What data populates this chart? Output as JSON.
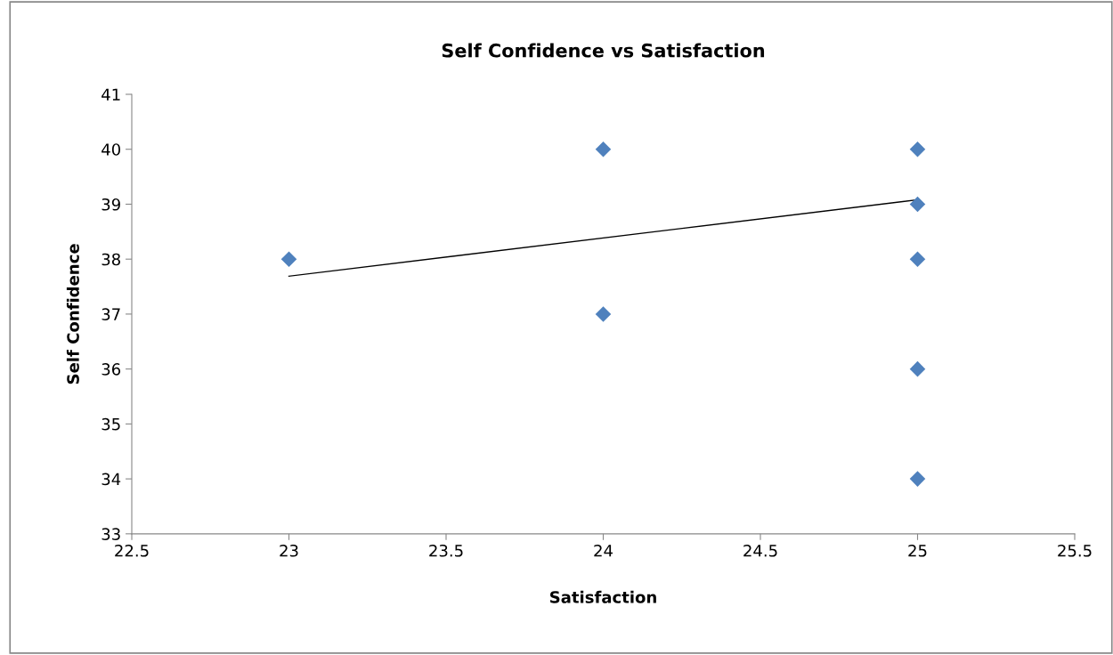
{
  "chart_data": {
    "type": "scatter",
    "title": "Self Confidence vs Satisfaction",
    "xlabel": "Satisfaction",
    "ylabel": "Self Confidence",
    "series": [
      {
        "color": "#4f81bd",
        "marker": "diamond",
        "x": [
          23,
          24,
          24,
          25,
          25,
          25,
          25,
          25
        ],
        "values": [
          38,
          40,
          37,
          40,
          39,
          38,
          36,
          34
        ]
      },
      {
        "type": "line",
        "color": "#000000",
        "marker": "none",
        "line_style": "solid",
        "x": [
          23,
          25
        ],
        "values": [
          37.69,
          39.08
        ]
      }
    ],
    "xlim": [
      22.5,
      25.5
    ],
    "xticks": [
      22.5,
      23,
      23.5,
      24,
      24.5,
      25,
      25.5
    ],
    "ylim": [
      33,
      41
    ],
    "yticks": [
      33,
      34,
      35,
      36,
      37,
      38,
      39,
      40,
      41
    ],
    "grid": false,
    "legend": false
  }
}
